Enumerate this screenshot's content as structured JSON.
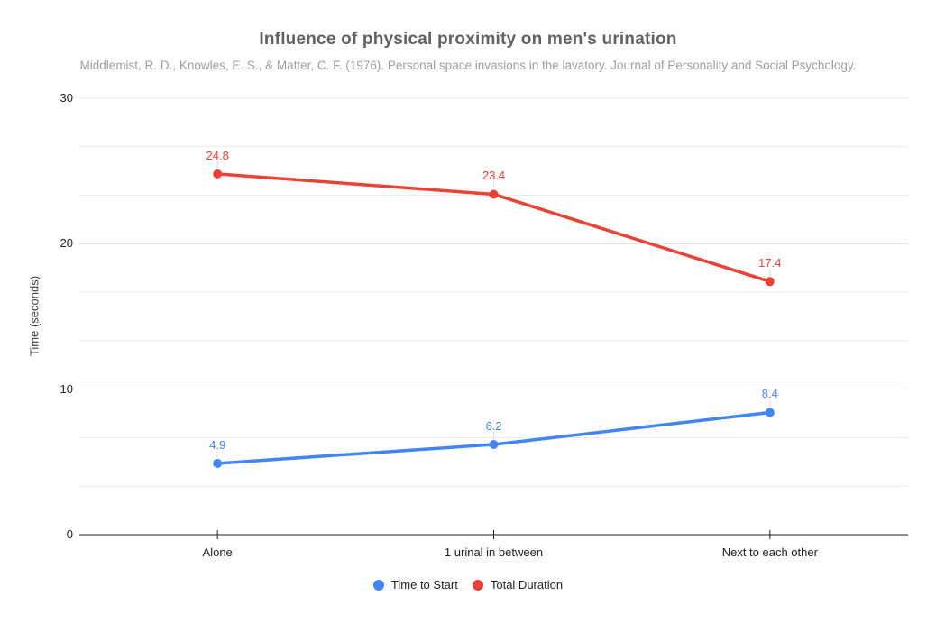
{
  "chart_data": {
    "type": "line",
    "title": "Influence of physical proximity on men's urination",
    "subtitle": "Middlemist, R. D., Knowles, E. S., & Matter, C. F. (1976). Personal space invasions in the lavatory. Journal of Personality and Social Psychology.",
    "categories": [
      "Alone",
      "1 urinal in between",
      "Next to each other"
    ],
    "series": [
      {
        "name": "Time to Start",
        "color": "#4285f4",
        "values": [
          4.9,
          6.2,
          8.4
        ]
      },
      {
        "name": "Total Duration",
        "color": "#ea4335",
        "values": [
          24.8,
          23.4,
          17.4
        ]
      }
    ],
    "xlabel": "",
    "ylabel": "Time (seconds)",
    "ylim": [
      0,
      30
    ],
    "y_ticks": [
      0,
      10,
      20,
      30
    ],
    "minor_gridlines_per_major": 2,
    "grid": true,
    "point_labels": true,
    "legend_position": "bottom"
  },
  "colors": {
    "background": "#ffffff",
    "title_text": "#616161",
    "subtitle_text": "#9e9e9e",
    "axis_text": "#212121",
    "axis_title_text": "#424242",
    "major_gridline": "#e0e0e0",
    "minor_gridline": "#ececec",
    "baseline": "#212121",
    "label_leader": "#dadada",
    "series_blue": "#4285f4",
    "series_red": "#ea4335"
  }
}
